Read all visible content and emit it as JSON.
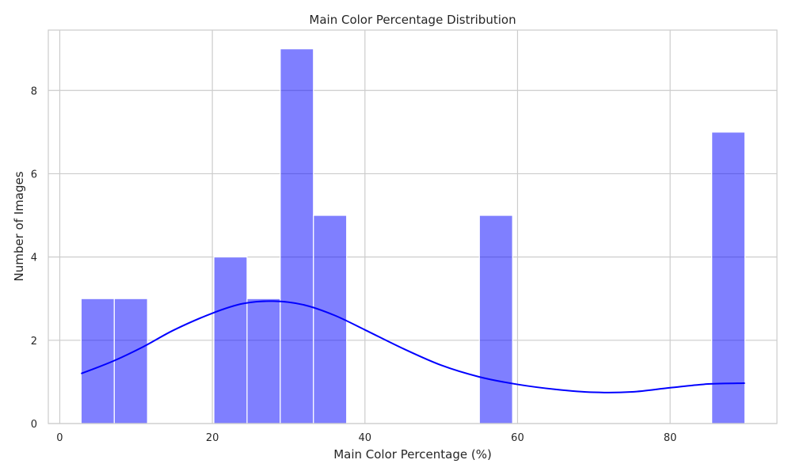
{
  "chart_data": {
    "type": "bar",
    "title": "Main Color Percentage Distribution",
    "xlabel": "Main Color Percentage (%)",
    "ylabel": "Number of Images",
    "xlim": [
      -1.5,
      94
    ],
    "ylim": [
      0,
      9.45
    ],
    "xticks": [
      0,
      20,
      40,
      60,
      80
    ],
    "yticks": [
      0,
      2,
      4,
      6,
      8
    ],
    "grid": true,
    "bins": [
      {
        "x0": 2.8,
        "x1": 7.15,
        "count": 3
      },
      {
        "x0": 7.15,
        "x1": 11.5,
        "count": 3
      },
      {
        "x0": 20.2,
        "x1": 24.55,
        "count": 4
      },
      {
        "x0": 24.55,
        "x1": 28.9,
        "count": 3
      },
      {
        "x0": 28.9,
        "x1": 33.25,
        "count": 9
      },
      {
        "x0": 33.25,
        "x1": 37.6,
        "count": 5
      },
      {
        "x0": 55.0,
        "x1": 59.35,
        "count": 5
      },
      {
        "x0": 85.45,
        "x1": 89.8,
        "count": 7
      }
    ],
    "kde": {
      "x": [
        2.8,
        7,
        11,
        15,
        20,
        24,
        28,
        32,
        36,
        40,
        45,
        50,
        55,
        60,
        65,
        70,
        75,
        80,
        85,
        89.8
      ],
      "y": [
        1.2,
        1.5,
        1.85,
        2.25,
        2.65,
        2.88,
        2.94,
        2.85,
        2.6,
        2.25,
        1.8,
        1.4,
        1.12,
        0.94,
        0.82,
        0.75,
        0.76,
        0.86,
        0.95,
        0.97
      ]
    },
    "colors": {
      "bar_fill": "#0000ff",
      "bar_opacity": 0.5,
      "bar_edge": "#ffffff",
      "kde_line": "#0000ff",
      "grid": "#cccccc",
      "frame": "#cccccc",
      "text": "#262626"
    }
  }
}
